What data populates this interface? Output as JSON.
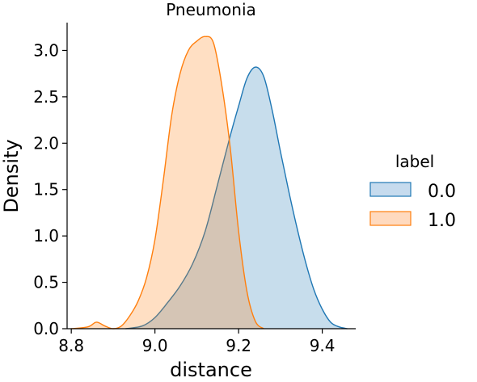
{
  "chart_data": {
    "type": "area",
    "title": "Pneumonia",
    "xlabel": "distance",
    "ylabel": "Density",
    "xlim": [
      8.79,
      9.48
    ],
    "ylim": [
      0,
      3.3
    ],
    "xticks": [
      {
        "value": 8.8,
        "label": "8.8"
      },
      {
        "value": 9.0,
        "label": "9.0"
      },
      {
        "value": 9.2,
        "label": "9.2"
      },
      {
        "value": 9.4,
        "label": "9.4"
      }
    ],
    "yticks": [
      {
        "value": 0.0,
        "label": "0.0"
      },
      {
        "value": 0.5,
        "label": "0.5"
      },
      {
        "value": 1.0,
        "label": "1.0"
      },
      {
        "value": 1.5,
        "label": "1.5"
      },
      {
        "value": 2.0,
        "label": "2.0"
      },
      {
        "value": 2.5,
        "label": "2.5"
      },
      {
        "value": 3.0,
        "label": "3.0"
      }
    ],
    "grid": false,
    "legend": {
      "title": "label",
      "position": "right",
      "entries": [
        {
          "label": "0.0",
          "fill": "#c6dbee",
          "stroke": "#1f77b4"
        },
        {
          "label": "1.0",
          "fill": "#ffdabf",
          "stroke": "#ff7f0e"
        }
      ]
    },
    "series": [
      {
        "label": "0.0",
        "stroke": "#1f77b4",
        "fill": "#1f77b4",
        "fill_opacity": 0.25,
        "x": [
          8.93,
          8.97,
          9.0,
          9.03,
          9.06,
          9.09,
          9.12,
          9.15,
          9.18,
          9.2,
          9.22,
          9.24,
          9.26,
          9.28,
          9.3,
          9.32,
          9.34,
          9.36,
          9.38,
          9.4,
          9.42,
          9.44,
          9.46
        ],
        "y": [
          0.0,
          0.03,
          0.12,
          0.28,
          0.46,
          0.7,
          1.05,
          1.56,
          2.08,
          2.4,
          2.7,
          2.82,
          2.72,
          2.36,
          1.91,
          1.48,
          1.08,
          0.72,
          0.42,
          0.21,
          0.07,
          0.02,
          0.0
        ]
      },
      {
        "label": "1.0",
        "stroke": "#ff7f0e",
        "fill": "#ff7f0e",
        "fill_opacity": 0.25,
        "x": [
          8.8,
          8.84,
          8.86,
          8.88,
          8.9,
          8.92,
          8.94,
          8.96,
          8.98,
          9.0,
          9.02,
          9.04,
          9.06,
          9.08,
          9.1,
          9.12,
          9.14,
          9.16,
          9.18,
          9.2,
          9.22,
          9.24,
          9.26
        ],
        "y": [
          0.0,
          0.02,
          0.07,
          0.03,
          0.0,
          0.03,
          0.14,
          0.3,
          0.55,
          0.96,
          1.6,
          2.3,
          2.75,
          3.0,
          3.1,
          3.15,
          3.08,
          2.62,
          1.95,
          1.05,
          0.4,
          0.08,
          0.0
        ]
      }
    ]
  }
}
